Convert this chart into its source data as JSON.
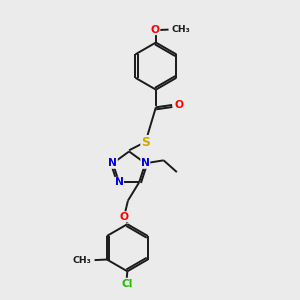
{
  "background_color": "#ebebeb",
  "bond_color": "#1a1a1a",
  "atom_colors": {
    "O": "#ff0000",
    "N": "#0000ee",
    "S": "#ccaa00",
    "Cl": "#22bb00",
    "C": "#1a1a1a"
  },
  "lw": 1.4,
  "fs": 7.2
}
